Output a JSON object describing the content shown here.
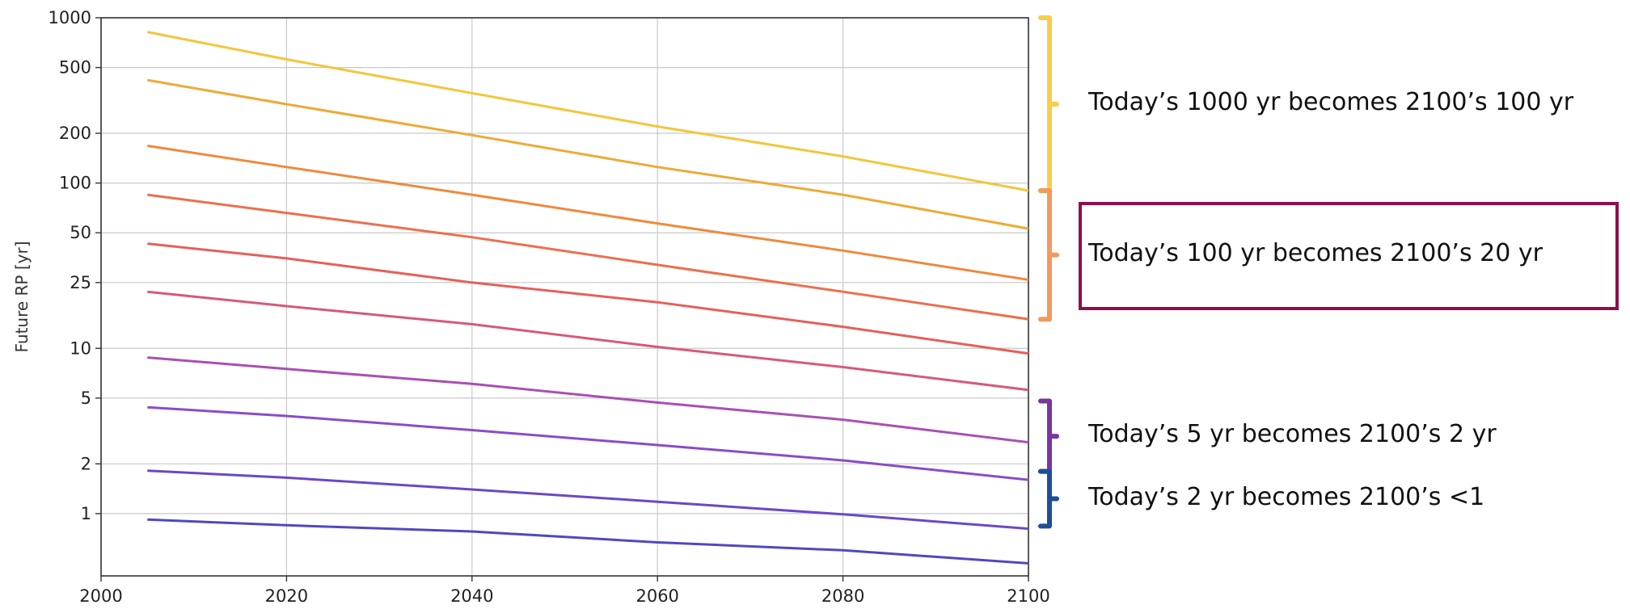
{
  "chart_data": {
    "type": "line",
    "ylabel": "Future RP [yr]",
    "xlabel": "",
    "xlim": [
      2000,
      2100
    ],
    "ylim": [
      0.42,
      1000
    ],
    "y_scale": "log",
    "grid": true,
    "x_ticks": [
      2000,
      2020,
      2040,
      2060,
      2080,
      2100
    ],
    "x_tick_labels": [
      "2000",
      "2020",
      "2040",
      "2060",
      "2080",
      "2100"
    ],
    "y_ticks": [
      1,
      2,
      5,
      10,
      25,
      50,
      100,
      200,
      500,
      1000
    ],
    "y_tick_labels": [
      "1",
      "2",
      "5",
      "10",
      "25",
      "50",
      "100",
      "200",
      "500",
      "1000"
    ],
    "series": [
      {
        "color": "#f3c63c",
        "x": [
          2005,
          2020,
          2040,
          2060,
          2080,
          2100
        ],
        "values": [
          820,
          560,
          350,
          220,
          145,
          90
        ]
      },
      {
        "color": "#eeaa35",
        "x": [
          2005,
          2020,
          2040,
          2060,
          2080,
          2100
        ],
        "values": [
          420,
          300,
          195,
          125,
          85,
          53
        ]
      },
      {
        "color": "#ee8a3c",
        "x": [
          2005,
          2020,
          2040,
          2060,
          2080,
          2100
        ],
        "values": [
          168,
          125,
          85,
          57,
          39,
          26
        ]
      },
      {
        "color": "#ec6f4d",
        "x": [
          2005,
          2020,
          2040,
          2060,
          2080,
          2100
        ],
        "values": [
          85,
          66,
          47,
          32,
          22,
          15
        ]
      },
      {
        "color": "#e4605b",
        "x": [
          2005,
          2020,
          2040,
          2060,
          2080,
          2100
        ],
        "values": [
          43,
          35,
          25,
          19,
          13.5,
          9.3
        ]
      },
      {
        "color": "#d65a78",
        "x": [
          2005,
          2020,
          2040,
          2060,
          2080,
          2100
        ],
        "values": [
          22,
          18,
          14,
          10.2,
          7.7,
          5.6
        ]
      },
      {
        "color": "#a94fb4",
        "x": [
          2005,
          2020,
          2040,
          2060,
          2080,
          2100
        ],
        "values": [
          8.8,
          7.5,
          6.1,
          4.7,
          3.7,
          2.7
        ]
      },
      {
        "color": "#8a4cc8",
        "x": [
          2005,
          2020,
          2040,
          2060,
          2080,
          2100
        ],
        "values": [
          4.4,
          3.9,
          3.2,
          2.6,
          2.1,
          1.6
        ]
      },
      {
        "color": "#6a48c8",
        "x": [
          2005,
          2020,
          2040,
          2060,
          2080,
          2100
        ],
        "values": [
          1.82,
          1.65,
          1.4,
          1.18,
          0.99,
          0.81
        ]
      },
      {
        "color": "#5048c0",
        "x": [
          2005,
          2020,
          2040,
          2060,
          2080,
          2100
        ],
        "values": [
          0.92,
          0.85,
          0.78,
          0.67,
          0.6,
          0.5
        ]
      }
    ]
  },
  "annotations": [
    {
      "text": "Today’s 1000 yr becomes 2100’s 100 yr",
      "color": "#f5cf4a",
      "from": 1000,
      "to": 90
    },
    {
      "text": "Today’s 100 yr becomes 2100’s 20 yr",
      "color": "#f09a5c",
      "from": 90,
      "to": 15,
      "highlighted": true
    },
    {
      "text": "Today’s 5 yr becomes 2100’s 2 yr",
      "color": "#7a35a0",
      "from": 4.8,
      "to": 1.8
    },
    {
      "text": "Today’s 2 yr becomes 2100’s <1",
      "color": "#1f4e96",
      "from": 1.8,
      "to": 0.84
    }
  ],
  "highlight_color": "#8e0f4e"
}
